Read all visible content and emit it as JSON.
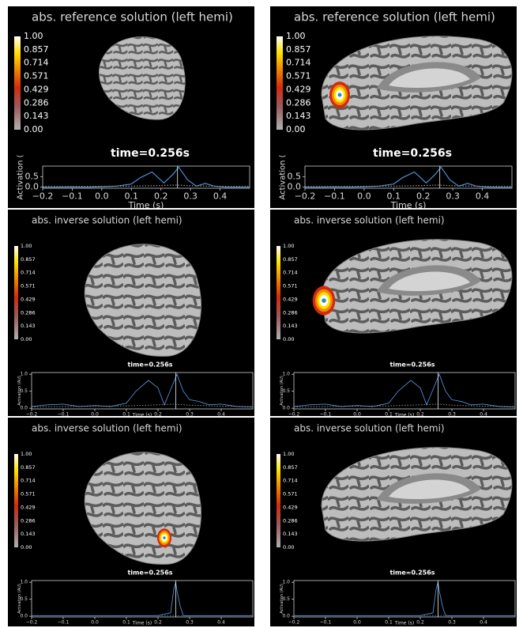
{
  "panels": [
    {
      "title": "abs. reference solution (left hemi)",
      "view": "lateral",
      "colorbar_labels": [
        "1.00",
        "0.857",
        "0.714",
        "0.571",
        "0.429",
        "0.286",
        "0.143",
        "0.00"
      ],
      "time_label": "time=0.256s",
      "plot": {
        "type": "line",
        "xlabel": "Time (s)",
        "ylabel": "Activation (",
        "xlim": [
          -0.2,
          0.5
        ],
        "ylim": [
          -0.05,
          1.0
        ],
        "cursor": 0.256,
        "xticks": [
          {
            "value": -0.2,
            "label": "−0.2"
          },
          {
            "value": -0.1,
            "label": "−0.1"
          },
          {
            "value": 0,
            "label": "0.0"
          },
          {
            "value": 0.1,
            "label": "0.1"
          },
          {
            "value": 0.2,
            "label": "0.2"
          },
          {
            "value": 0.3,
            "label": "0.3"
          },
          {
            "value": 0.4,
            "label": "0.4"
          }
        ],
        "yticks": [
          {
            "value": 0,
            "label": "0.0"
          },
          {
            "value": 0.5,
            "label": "0.5"
          }
        ],
        "series": [
          {
            "color": "#4f8fcf",
            "linestyle": "solid",
            "x": [
              -0.2,
              -0.15,
              -0.1,
              -0.05,
              0,
              0.05,
              0.1,
              0.13,
              0.17,
              0.21,
              0.24,
              0.26,
              0.29,
              0.32,
              0.35,
              0.38,
              0.42,
              0.5
            ],
            "values": [
              0,
              0,
              0.01,
              0,
              0.02,
              0.05,
              0.15,
              0.45,
              0.72,
              0.2,
              0.6,
              0.95,
              0.35,
              0.05,
              0.18,
              0.05,
              0,
              0
            ]
          },
          {
            "color": "#999999",
            "linestyle": "dotted",
            "x": [
              -0.2,
              -0.1,
              0,
              0.1,
              0.2,
              0.25,
              0.3,
              0.4,
              0.5
            ],
            "values": [
              0.03,
              0.03,
              0.04,
              0.05,
              0.08,
              0.1,
              0.07,
              0.04,
              0.03
            ]
          }
        ]
      }
    },
    {
      "title": "abs. reference solution (left hemi)",
      "view": "medial",
      "colorbar_labels": [
        "1.00",
        "0.857",
        "0.714",
        "0.571",
        "0.429",
        "0.286",
        "0.143",
        "0.00"
      ],
      "time_label": "time=0.256s",
      "plot": {
        "type": "line",
        "xlabel": "Time (s)",
        "ylabel": "Activation (",
        "xlim": [
          -0.2,
          0.5
        ],
        "ylim": [
          -0.05,
          1.0
        ],
        "cursor": 0.256,
        "xticks": [
          {
            "value": -0.2,
            "label": "−0.2"
          },
          {
            "value": -0.1,
            "label": "−0.1"
          },
          {
            "value": 0,
            "label": "0.0"
          },
          {
            "value": 0.1,
            "label": "0.1"
          },
          {
            "value": 0.2,
            "label": "0.2"
          },
          {
            "value": 0.3,
            "label": "0.3"
          },
          {
            "value": 0.4,
            "label": "0.4"
          }
        ],
        "yticks": [
          {
            "value": 0,
            "label": "0.0"
          },
          {
            "value": 0.5,
            "label": "0.5"
          }
        ],
        "series": [
          {
            "color": "#4f8fcf",
            "linestyle": "solid",
            "x": [
              -0.2,
              -0.15,
              -0.1,
              -0.05,
              0,
              0.05,
              0.1,
              0.13,
              0.17,
              0.21,
              0.24,
              0.26,
              0.29,
              0.32,
              0.35,
              0.38,
              0.42,
              0.5
            ],
            "values": [
              0,
              0,
              0.01,
              0,
              0.02,
              0.05,
              0.15,
              0.45,
              0.72,
              0.2,
              0.6,
              0.95,
              0.35,
              0.05,
              0.18,
              0.05,
              0,
              0
            ]
          },
          {
            "color": "#999999",
            "linestyle": "dotted",
            "x": [
              -0.2,
              -0.1,
              0,
              0.1,
              0.2,
              0.25,
              0.3,
              0.4,
              0.5
            ],
            "values": [
              0.03,
              0.03,
              0.04,
              0.05,
              0.08,
              0.1,
              0.07,
              0.04,
              0.03
            ]
          }
        ]
      }
    },
    {
      "title": "abs. inverse solution (left hemi)",
      "view": "lateral",
      "colorbar_labels": [
        "1.00",
        "0.857",
        "0.714",
        "0.571",
        "0.429",
        "0.286",
        "0.143",
        "0.00"
      ],
      "time_label": "time=0.256s",
      "plot": {
        "type": "line",
        "xlabel": "Time (s)",
        "ylabel": "Activation (AU)",
        "xlim": [
          -0.2,
          0.5
        ],
        "ylim": [
          -0.02,
          1.05
        ],
        "cursor": 0.256,
        "xticks": [
          {
            "value": -0.2,
            "label": "−0.2"
          },
          {
            "value": -0.1,
            "label": "−0.1"
          },
          {
            "value": 0,
            "label": "0.0"
          },
          {
            "value": 0.1,
            "label": "0.1"
          },
          {
            "value": 0.2,
            "label": "0.2"
          },
          {
            "value": 0.3,
            "label": "0.3"
          },
          {
            "value": 0.4,
            "label": "0.4"
          }
        ],
        "yticks": [
          {
            "value": 0,
            "label": "0.0"
          },
          {
            "value": 0.5,
            "label": "0.5"
          },
          {
            "value": 1,
            "label": "1.0"
          }
        ],
        "series": [
          {
            "color": "#4f8fcf",
            "linestyle": "solid",
            "x": [
              -0.2,
              -0.15,
              -0.1,
              -0.05,
              0,
              0.05,
              0.1,
              0.13,
              0.17,
              0.2,
              0.22,
              0.24,
              0.26,
              0.28,
              0.3,
              0.33,
              0.36,
              0.4,
              0.45,
              0.5
            ],
            "values": [
              0.05,
              0.1,
              0.12,
              0.05,
              0.08,
              0.05,
              0.15,
              0.5,
              0.82,
              0.6,
              0.1,
              0.55,
              1.0,
              0.5,
              0.25,
              0.2,
              0.1,
              0.12,
              0.05,
              0.03
            ]
          },
          {
            "color": "#999999",
            "linestyle": "dotted",
            "x": [
              -0.2,
              -0.1,
              0,
              0.1,
              0.2,
              0.25,
              0.3,
              0.4,
              0.5
            ],
            "values": [
              0.04,
              0.05,
              0.06,
              0.07,
              0.1,
              0.12,
              0.09,
              0.06,
              0.05
            ]
          }
        ]
      }
    },
    {
      "title": "abs. inverse solution (left hemi)",
      "view": "medial",
      "colorbar_labels": [
        "1.00",
        "0.857",
        "0.714",
        "0.571",
        "0.429",
        "0.286",
        "0.143",
        "0.00"
      ],
      "time_label": "time=0.256s",
      "plot": {
        "type": "line",
        "xlabel": "Time (s)",
        "ylabel": "Activation (AU)",
        "xlim": [
          -0.2,
          0.5
        ],
        "ylim": [
          -0.02,
          1.05
        ],
        "cursor": 0.256,
        "xticks": [
          {
            "value": -0.2,
            "label": "−0.2"
          },
          {
            "value": -0.1,
            "label": "−0.1"
          },
          {
            "value": 0,
            "label": "0.0"
          },
          {
            "value": 0.1,
            "label": "0.1"
          },
          {
            "value": 0.2,
            "label": "0.2"
          },
          {
            "value": 0.3,
            "label": "0.3"
          },
          {
            "value": 0.4,
            "label": "0.4"
          }
        ],
        "yticks": [
          {
            "value": 0,
            "label": "0.0"
          },
          {
            "value": 0.5,
            "label": "0.5"
          },
          {
            "value": 1,
            "label": "1.0"
          }
        ],
        "series": [
          {
            "color": "#4f8fcf",
            "linestyle": "solid",
            "x": [
              -0.2,
              -0.15,
              -0.1,
              -0.05,
              0,
              0.05,
              0.1,
              0.13,
              0.17,
              0.2,
              0.22,
              0.24,
              0.26,
              0.28,
              0.3,
              0.33,
              0.36,
              0.4,
              0.45,
              0.5
            ],
            "values": [
              0.05,
              0.1,
              0.12,
              0.05,
              0.08,
              0.05,
              0.15,
              0.5,
              0.82,
              0.6,
              0.1,
              0.55,
              1.0,
              0.5,
              0.25,
              0.2,
              0.1,
              0.12,
              0.05,
              0.03
            ]
          },
          {
            "color": "#999999",
            "linestyle": "dotted",
            "x": [
              -0.2,
              -0.1,
              0,
              0.1,
              0.2,
              0.25,
              0.3,
              0.4,
              0.5
            ],
            "values": [
              0.04,
              0.05,
              0.06,
              0.07,
              0.1,
              0.12,
              0.09,
              0.06,
              0.05
            ]
          }
        ]
      }
    },
    {
      "title": "abs. inverse solution (left hemi)",
      "view": "lateral",
      "colorbar_labels": [
        "1.00",
        "0.857",
        "0.714",
        "0.571",
        "0.429",
        "0.286",
        "0.143",
        "0.00"
      ],
      "time_label": "time=0.256s",
      "plot": {
        "type": "line",
        "xlabel": "Time (s)",
        "ylabel": "Activation (AU)",
        "xlim": [
          -0.2,
          0.5
        ],
        "ylim": [
          -0.02,
          1.05
        ],
        "cursor": 0.256,
        "xticks": [
          {
            "value": -0.2,
            "label": "−0.2"
          },
          {
            "value": -0.1,
            "label": "−0.1"
          },
          {
            "value": 0,
            "label": "0.0"
          },
          {
            "value": 0.1,
            "label": "0.1"
          },
          {
            "value": 0.2,
            "label": "0.2"
          },
          {
            "value": 0.3,
            "label": "0.3"
          },
          {
            "value": 0.4,
            "label": "0.4"
          }
        ],
        "yticks": [
          {
            "value": 0,
            "label": "0.0"
          },
          {
            "value": 0.5,
            "label": "0.5"
          },
          {
            "value": 1,
            "label": "1.0"
          }
        ],
        "series": [
          {
            "color": "#4f8fcf",
            "linestyle": "solid",
            "x": [
              -0.2,
              0.2,
              0.24,
              0.25,
              0.256,
              0.26,
              0.27,
              0.28,
              0.5
            ],
            "values": [
              0.02,
              0.02,
              0.1,
              0.8,
              1.0,
              0.75,
              0.3,
              0.02,
              0.02
            ]
          },
          {
            "color": "#4f8fcf",
            "linestyle": "dotted",
            "x": [
              -0.2,
              0.5
            ],
            "values": [
              0.02,
              0.02
            ]
          }
        ]
      }
    },
    {
      "title": "abs. inverse solution (left hemi)",
      "view": "medial",
      "colorbar_labels": [
        "1.00",
        "0.857",
        "0.714",
        "0.571",
        "0.429",
        "0.286",
        "0.143",
        "0.00"
      ],
      "time_label": "time=0.256s",
      "plot": {
        "type": "line",
        "xlabel": "Time (s)",
        "ylabel": "Activation (AU)",
        "xlim": [
          -0.2,
          0.5
        ],
        "ylim": [
          -0.02,
          1.05
        ],
        "cursor": 0.256,
        "xticks": [
          {
            "value": -0.2,
            "label": "−0.2"
          },
          {
            "value": -0.1,
            "label": "−0.1"
          },
          {
            "value": 0,
            "label": "0.0"
          },
          {
            "value": 0.1,
            "label": "0.1"
          },
          {
            "value": 0.2,
            "label": "0.2"
          },
          {
            "value": 0.3,
            "label": "0.3"
          },
          {
            "value": 0.4,
            "label": "0.4"
          }
        ],
        "yticks": [
          {
            "value": 0,
            "label": "0.0"
          },
          {
            "value": 0.5,
            "label": "0.5"
          },
          {
            "value": 1,
            "label": "1.0"
          }
        ],
        "series": [
          {
            "color": "#4f8fcf",
            "linestyle": "solid",
            "x": [
              -0.2,
              0.2,
              0.24,
              0.25,
              0.256,
              0.26,
              0.27,
              0.28,
              0.5
            ],
            "values": [
              0.02,
              0.02,
              0.1,
              0.8,
              1.0,
              0.75,
              0.3,
              0.02,
              0.02
            ]
          },
          {
            "color": "#4f8fcf",
            "linestyle": "dotted",
            "x": [
              -0.2,
              0.5
            ],
            "values": [
              0.02,
              0.02
            ]
          }
        ]
      }
    }
  ]
}
